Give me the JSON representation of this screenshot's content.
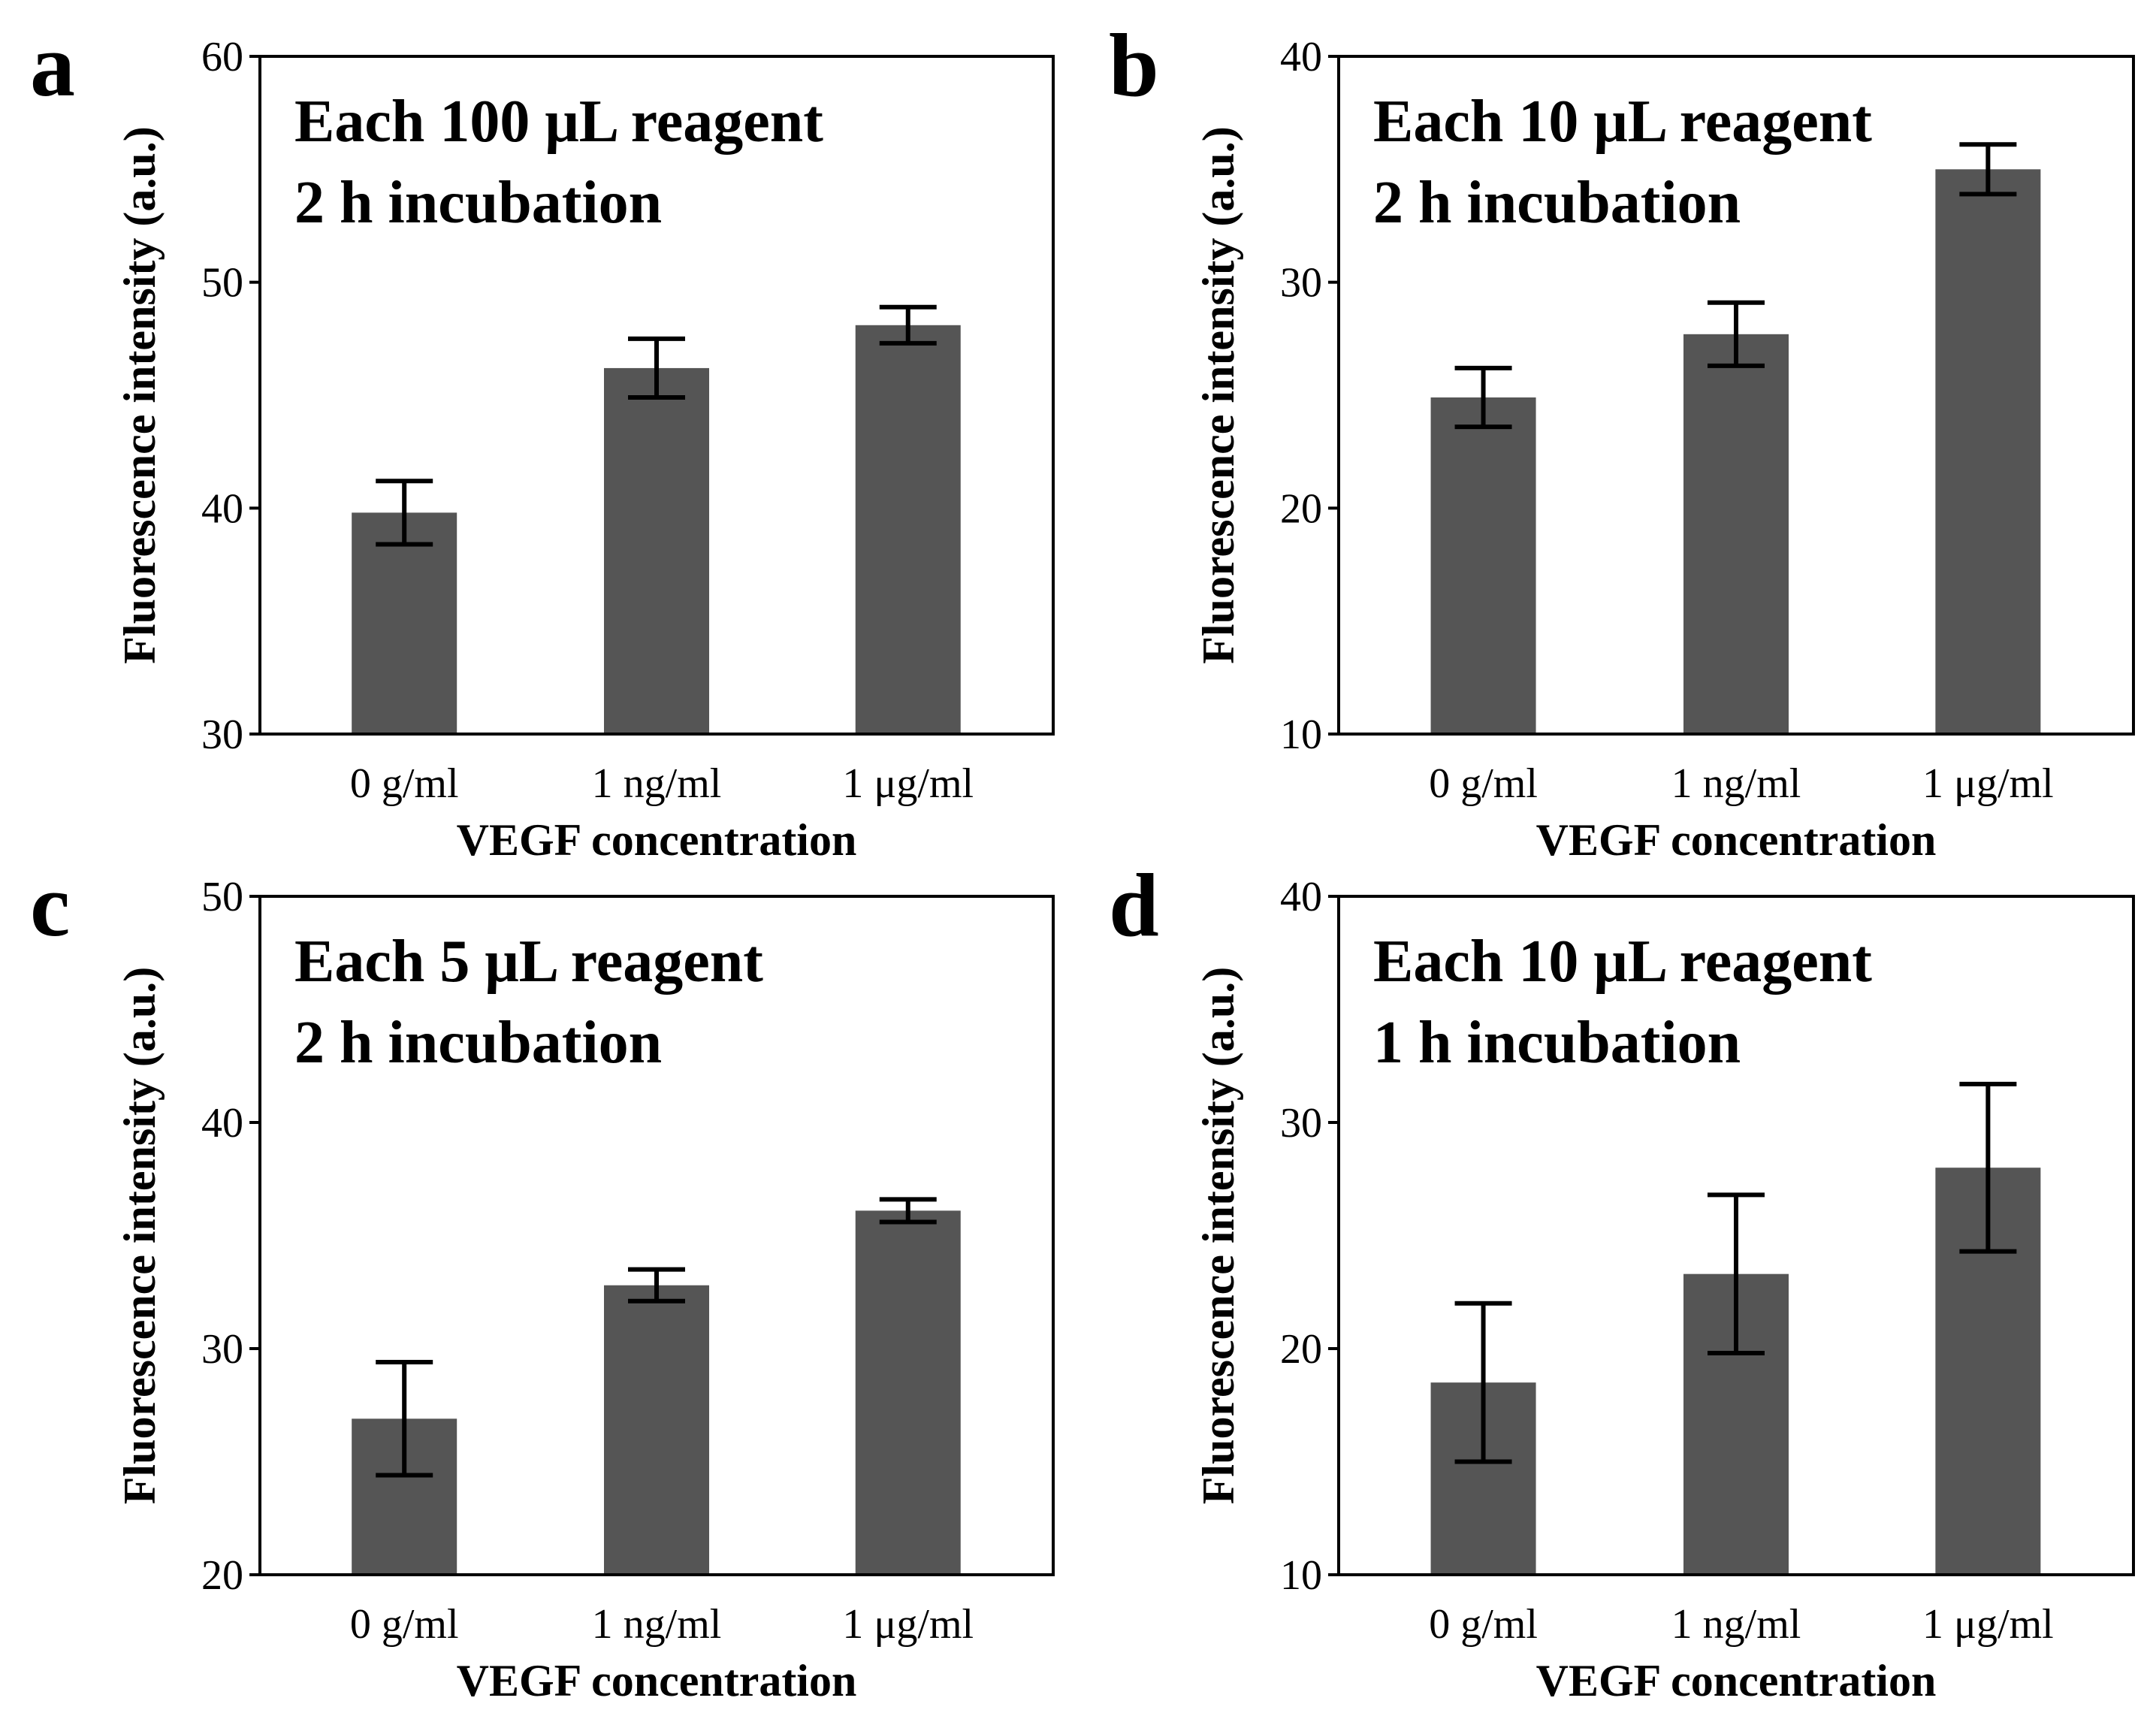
{
  "chart_data": [
    {
      "panel": "a",
      "type": "bar",
      "categories": [
        "0 g/ml",
        "1 ng/ml",
        "1 μg/ml"
      ],
      "values": [
        39.8,
        46.2,
        48.1
      ],
      "errors": [
        1.4,
        1.3,
        0.8
      ],
      "annotation": [
        "Each 100 μL reagent",
        "2 h incubation"
      ],
      "xlabel": "VEGF concentration",
      "ylabel": "Fluorescence intensity (a.u.)",
      "ylim": [
        30,
        60
      ],
      "yticks": [
        30,
        40,
        50,
        60
      ],
      "bar_color": "#555555"
    },
    {
      "panel": "b",
      "type": "bar",
      "categories": [
        "0 g/ml",
        "1 ng/ml",
        "1 μg/ml"
      ],
      "values": [
        24.9,
        27.7,
        35.0
      ],
      "errors": [
        1.3,
        1.4,
        1.1
      ],
      "annotation": [
        "Each 10 μL reagent",
        "2 h incubation"
      ],
      "xlabel": "VEGF concentration",
      "ylabel": "Fluorescence intensity (a.u.)",
      "ylim": [
        10,
        40
      ],
      "yticks": [
        10,
        20,
        30,
        40
      ],
      "bar_color": "#555555"
    },
    {
      "panel": "c",
      "type": "bar",
      "categories": [
        "0 g/ml",
        "1 ng/ml",
        "1 μg/ml"
      ],
      "values": [
        26.9,
        32.8,
        36.1
      ],
      "errors": [
        2.5,
        0.7,
        0.5
      ],
      "annotation": [
        "Each 5 μL reagent",
        "2 h incubation"
      ],
      "xlabel": "VEGF concentration",
      "ylabel": "Fluorescence intensity (a.u.)",
      "ylim": [
        20,
        50
      ],
      "yticks": [
        20,
        30,
        40,
        50
      ],
      "bar_color": "#555555"
    },
    {
      "panel": "d",
      "type": "bar",
      "categories": [
        "0 g/ml",
        "1 ng/ml",
        "1 μg/ml"
      ],
      "values": [
        18.5,
        23.3,
        28.0
      ],
      "errors": [
        3.5,
        3.5,
        3.7
      ],
      "annotation": [
        "Each 10 μL reagent",
        "1 h incubation"
      ],
      "xlabel": "VEGF concentration",
      "ylabel": "Fluorescence intensity (a.u.)",
      "ylim": [
        10,
        40
      ],
      "yticks": [
        10,
        20,
        30,
        40
      ],
      "bar_color": "#555555"
    }
  ]
}
